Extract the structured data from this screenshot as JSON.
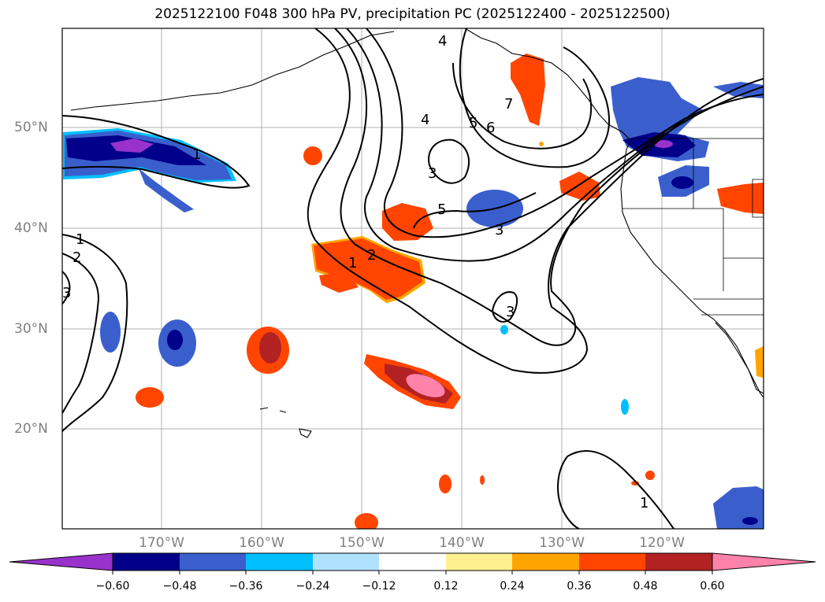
{
  "title": "2025122100 F048 300 hPa PV, precipitation PC (2025122400 - 2025122500)",
  "lat_labels": [
    "50°N",
    "40°N",
    "30°N",
    "20°N"
  ],
  "lon_labels": [
    "170°W",
    "160°W",
    "150°W",
    "140°W",
    "130°W",
    "120°W"
  ],
  "colorbar": {
    "colors": [
      "#9932cc",
      "#00008b",
      "#3a5fcd",
      "#00bfff",
      "#b0e2ff",
      "#ffffff",
      "#fff08f",
      "#ffa500",
      "#ff4500",
      "#b22222",
      "#ff82ab"
    ],
    "ticks": [
      "−0.60",
      "−0.48",
      "−0.36",
      "−0.24",
      "−0.12",
      "0.12",
      "0.24",
      "0.36",
      "0.48",
      "0.60"
    ]
  },
  "contour_labels": [
    "1",
    "1",
    "2",
    "3",
    "4",
    "4",
    "5",
    "5",
    "6",
    "7",
    "3",
    "3",
    "2",
    "1",
    "1",
    "3"
  ]
}
